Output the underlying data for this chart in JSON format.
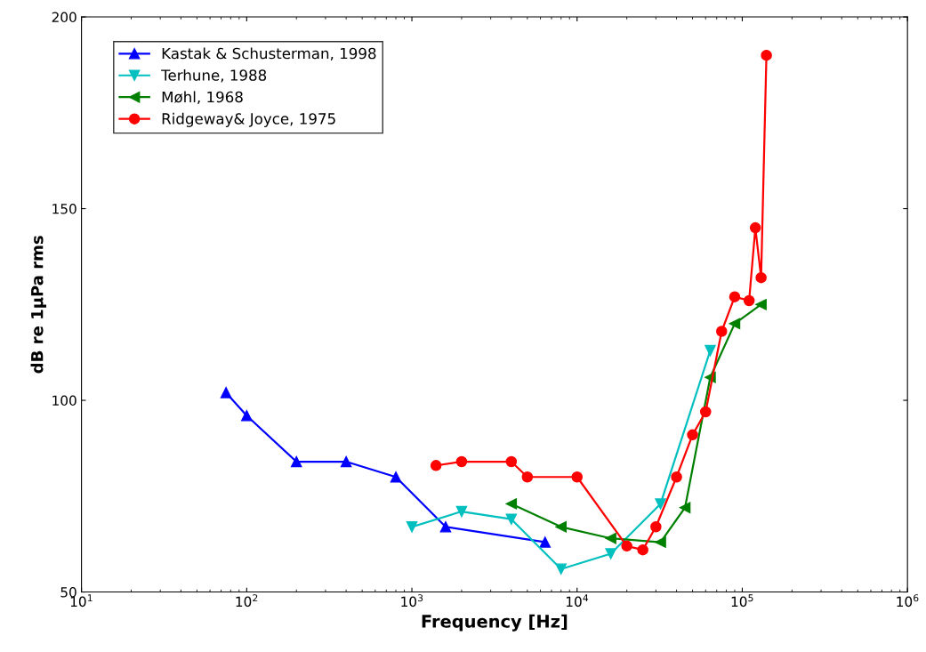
{
  "chart_data": {
    "type": "line",
    "xlabel": "Frequency [Hz]",
    "ylabel": "dB re 1µPa rms",
    "log": "x",
    "grid": false,
    "legend": "top left",
    "xlim": [
      10,
      1000000
    ],
    "xticks": [
      {
        "value": 10,
        "label": "10$^{1}$"
      },
      {
        "value": 100,
        "label": "10$^{2}$"
      },
      {
        "value": 1000,
        "label": "10$^{3}$"
      },
      {
        "value": 10000,
        "label": "10$^{4}$"
      },
      {
        "value": 100000,
        "label": "10$^{5}$"
      },
      {
        "value": 1000000,
        "label": "10$^{6}$"
      }
    ],
    "ylim": [
      50,
      200
    ],
    "yticks": [
      50,
      100,
      150,
      200
    ],
    "series": [
      {
        "name": "Kastak & Schusterman, 1998",
        "color": "#0000ff",
        "marker": "triangle",
        "x": [
          75,
          100,
          200,
          400,
          800,
          1600,
          6400
        ],
        "values": [
          102,
          96,
          84,
          84,
          80,
          67,
          63
        ]
      },
      {
        "name": "Terhune, 1988",
        "color": "#00bfbf",
        "marker": "triangle_down",
        "x": [
          1000,
          2000,
          4000,
          8000,
          16000,
          32000,
          64000
        ],
        "values": [
          67,
          71,
          69,
          56,
          60,
          73,
          113
        ]
      },
      {
        "name": "Møhl, 1968",
        "color": "#008000",
        "marker": "triangle_left",
        "x": [
          4000,
          8000,
          16000,
          32000,
          45000,
          64000,
          90000,
          130000
        ],
        "values": [
          73,
          67,
          64,
          63,
          72,
          106,
          120,
          125
        ]
      },
      {
        "name": "Ridgeway& Joyce, 1975",
        "color": "#ff0000",
        "marker": "circle",
        "x": [
          1400,
          2000,
          4000,
          5000,
          10000,
          20000,
          25000,
          30000,
          40000,
          50000,
          60000,
          75000,
          90000,
          110000,
          120000,
          130000,
          140000
        ],
        "values": [
          83,
          84,
          84,
          80,
          80,
          62,
          61,
          67,
          80,
          91,
          97,
          118,
          127,
          126,
          145,
          132,
          190
        ]
      }
    ]
  }
}
